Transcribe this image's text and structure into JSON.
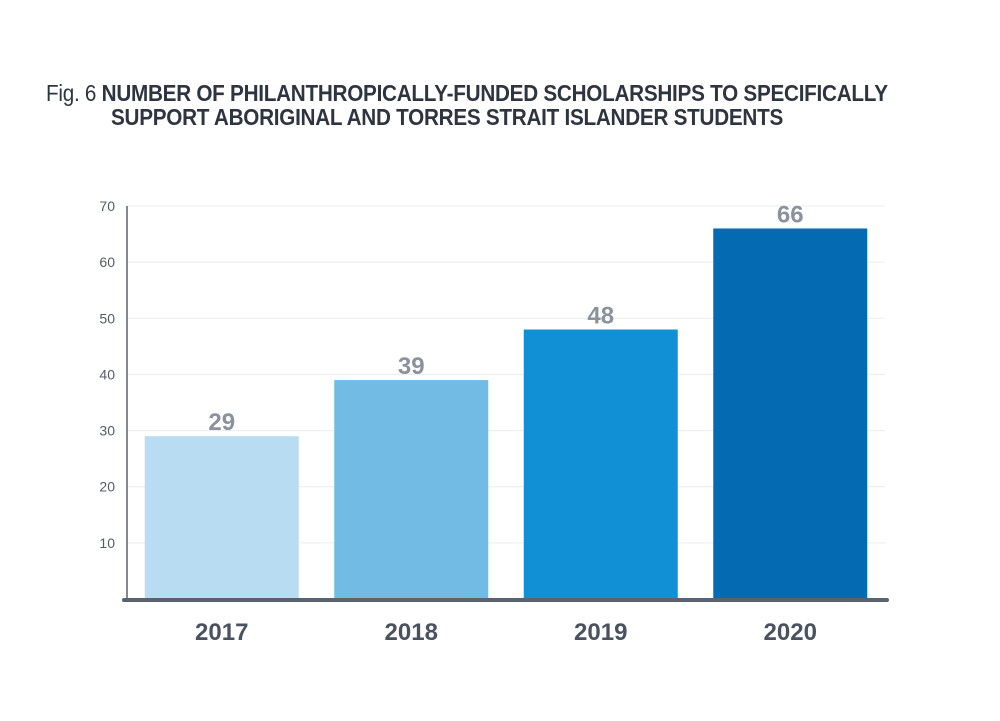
{
  "chart_data": {
    "type": "bar",
    "title_prefix": "Fig. 6",
    "title_line1": "NUMBER OF PHILANTHROPICALLY-FUNDED SCHOLARSHIPS TO SPECIFICALLY",
    "title_line2": "SUPPORT ABORIGINAL AND TORRES STRAIT ISLANDER STUDENTS",
    "title": "Fig. 6 NUMBER OF PHILANTHROPICALLY-FUNDED SCHOLARSHIPS TO SPECIFICALLY SUPPORT ABORIGINAL AND TORRES STRAIT ISLANDER STUDENTS",
    "categories": [
      "2017",
      "2018",
      "2019",
      "2020"
    ],
    "values": [
      29,
      39,
      48,
      66
    ],
    "data_labels": [
      "29",
      "39",
      "48",
      "66"
    ],
    "bar_colors": [
      "#b8ddf2",
      "#72bbe4",
      "#1190d6",
      "#046bb3"
    ],
    "xlabel": "",
    "ylabel": "",
    "ylim": [
      0,
      70
    ],
    "yticks": [
      10,
      20,
      30,
      40,
      50,
      60,
      70
    ],
    "grid": true,
    "legend": "none"
  }
}
